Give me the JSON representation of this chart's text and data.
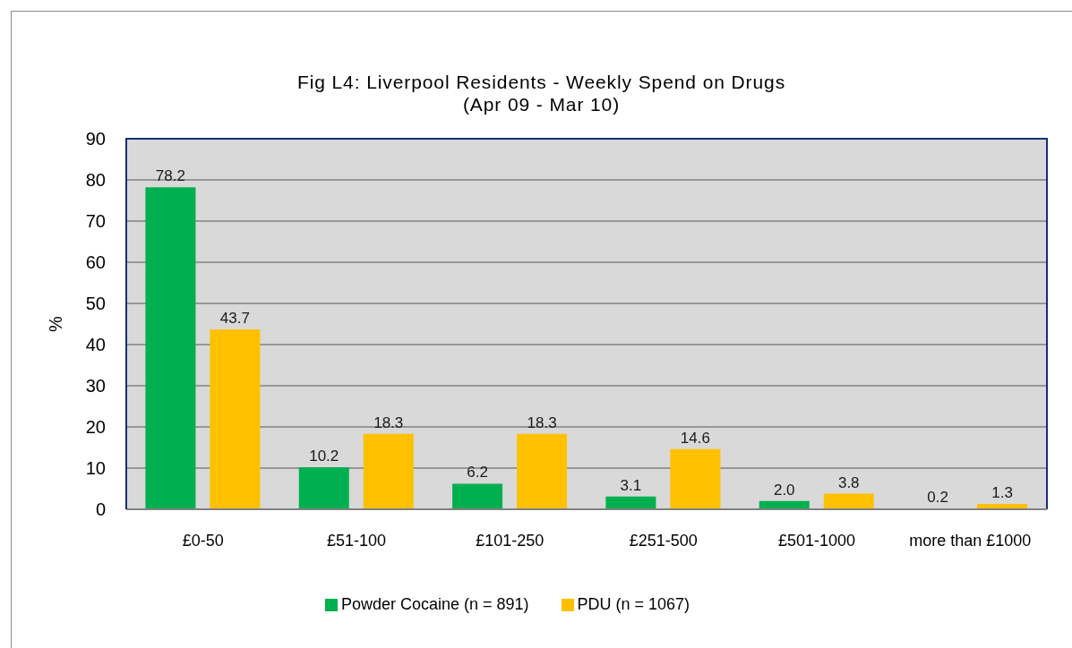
{
  "chart_data": {
    "type": "bar",
    "title": "Fig L4: Liverpool Residents - Weekly Spend on Drugs",
    "subtitle": "(Apr 09 - Mar 10)",
    "ylabel": "%",
    "categories": [
      "£0-50",
      "£51-100",
      "£101-250",
      "£251-500",
      "£501-1000",
      "more than £1000"
    ],
    "series": [
      {
        "name": "Powder Cocaine (n = 891)",
        "color": "#00b050",
        "values": [
          78.2,
          10.2,
          6.2,
          3.1,
          2.0,
          0.2
        ],
        "value_labels": [
          "78.2",
          "10.2",
          "6.2",
          "3.1",
          "2.0",
          "0.2"
        ]
      },
      {
        "name": "PDU (n = 1067)",
        "color": "#ffc000",
        "values": [
          43.7,
          18.3,
          18.3,
          14.6,
          3.8,
          1.3
        ],
        "value_labels": [
          "43.7",
          "18.3",
          "18.3",
          "14.6",
          "3.8",
          "1.3"
        ]
      }
    ],
    "ylim": [
      0,
      90
    ],
    "yticks": [
      0,
      10,
      20,
      30,
      40,
      50,
      60,
      70,
      80,
      90
    ],
    "grid": "y",
    "legend": "bottom"
  }
}
